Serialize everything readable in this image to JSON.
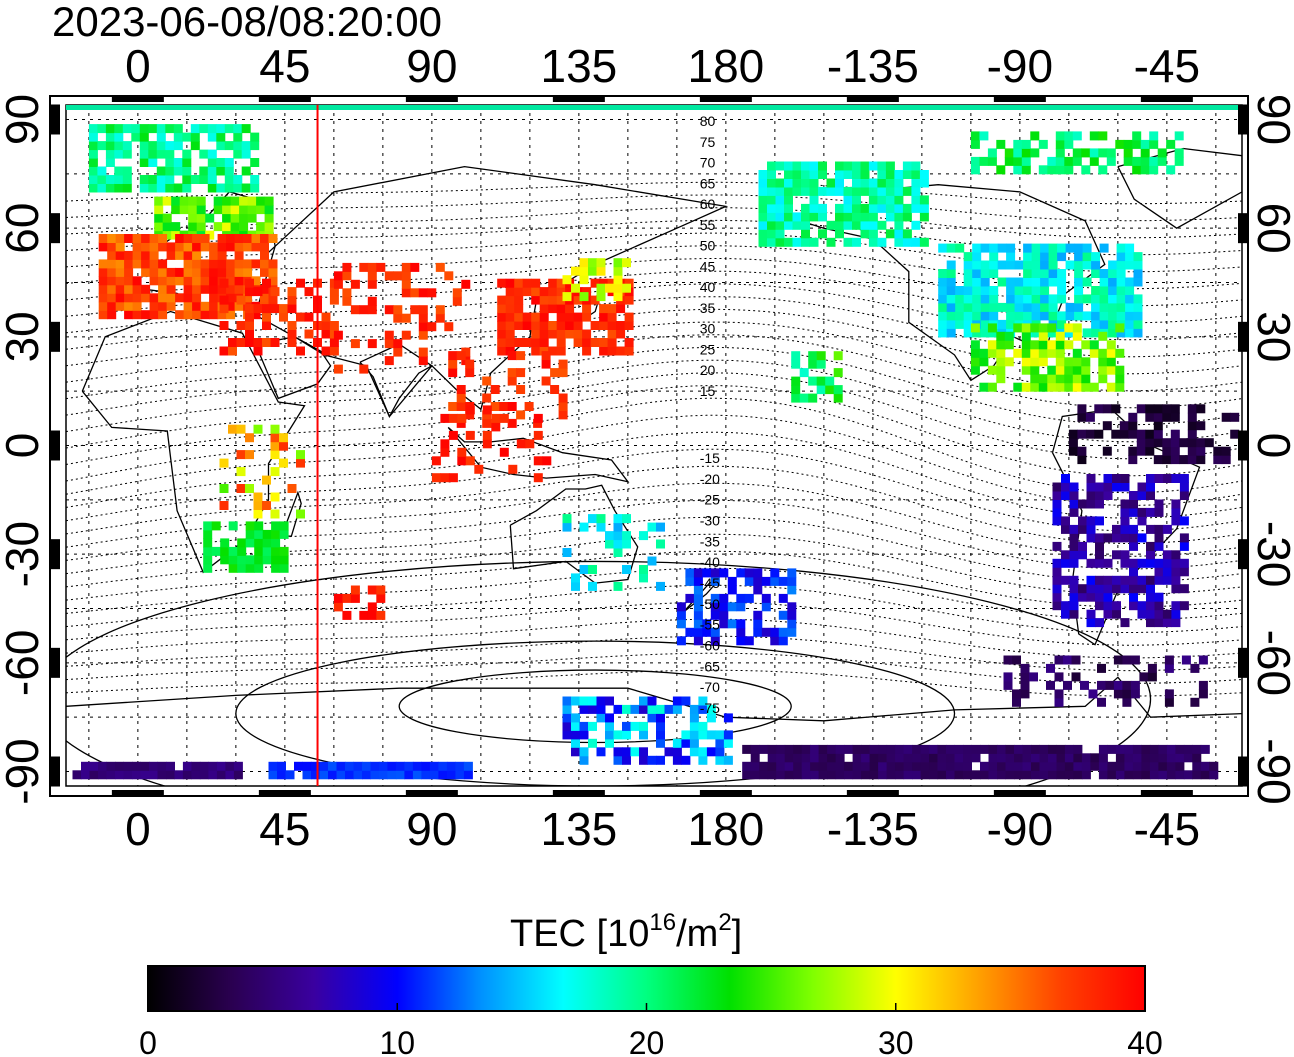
{
  "title": "2023-06-08/08:20:00",
  "axes": {
    "x_top_labels": [
      "0",
      "45",
      "90",
      "135",
      "180",
      "-135",
      "-90",
      "-45"
    ],
    "x_bottom_labels": [
      "0",
      "45",
      "90",
      "135",
      "180",
      "-135",
      "-90",
      "-45"
    ],
    "y_left_labels": [
      "90",
      "60",
      "30",
      "0",
      "-30",
      "-60",
      "-90"
    ],
    "y_right_labels": [
      "90",
      "60",
      "30",
      "0",
      "-30",
      "-60",
      "-90"
    ]
  },
  "map": {
    "type": "global total electron content (TEC) map",
    "projection": "equirectangular",
    "longitude_range": [
      -22,
      338
    ],
    "latitude_range": [
      -94,
      94
    ],
    "grid": true,
    "red_meridian_longitude": 55,
    "dip_latitude_labels_north": [
      "80",
      "75",
      "70",
      "65",
      "60",
      "55",
      "50",
      "45",
      "40",
      "35",
      "30",
      "25",
      "20",
      "15"
    ],
    "dip_latitude_labels_south": [
      "-15",
      "-20",
      "-25",
      "-30",
      "-35",
      "-40",
      "-45",
      "-50",
      "-55",
      "-60",
      "-65",
      "-70",
      "-75"
    ]
  },
  "colorbar": {
    "title_prefix": "TEC  [10",
    "title_sup1": "16",
    "title_mid": "/m",
    "title_sup2": "2",
    "title_suffix": "]",
    "min": 0,
    "max": 40,
    "tick_labels": [
      "0",
      "10",
      "20",
      "30",
      "40"
    ],
    "colormap": [
      "#000000",
      "#2a0050",
      "#3a00a0",
      "#0000ff",
      "#0090ff",
      "#00ffff",
      "#00ff80",
      "#00e000",
      "#80ff00",
      "#ffff00",
      "#ffa000",
      "#ff4000",
      "#ff0000"
    ]
  }
}
